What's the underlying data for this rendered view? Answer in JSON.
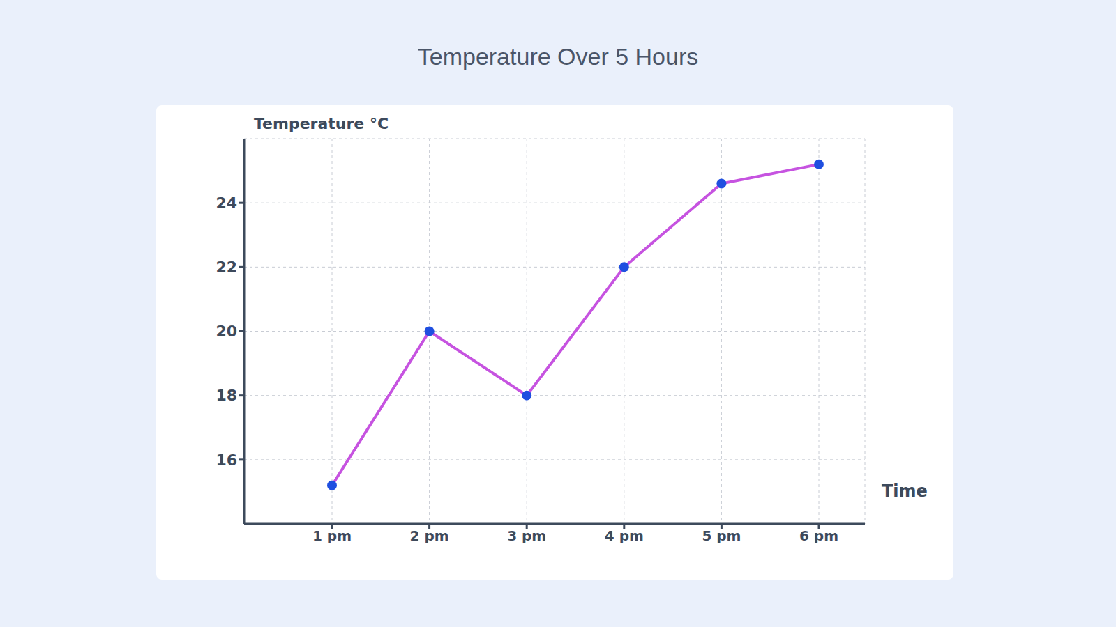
{
  "chart_data": {
    "type": "line",
    "title": "Temperature Over 5 Hours",
    "x_label": "Time",
    "y_label": "Temperature °C",
    "categories": [
      "1 pm",
      "2 pm",
      "3 pm",
      "4 pm",
      "5 pm",
      "6 pm"
    ],
    "values": [
      15.2,
      20,
      18,
      22,
      24.6,
      25.2
    ],
    "color": "#c653e0",
    "marker": "circle",
    "ylim": [
      14,
      26
    ],
    "yticks": [
      16,
      18,
      20,
      22,
      24
    ],
    "grid": true
  }
}
